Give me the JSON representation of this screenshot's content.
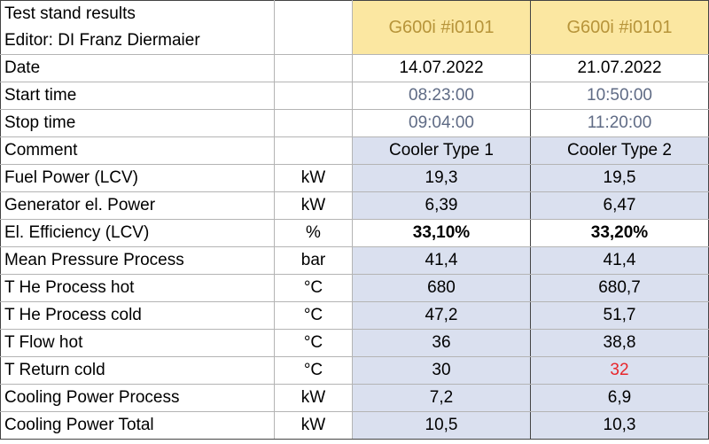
{
  "header": {
    "title_line1": "Test stand results",
    "title_line2": "Editor: DI Franz Diermaier",
    "unit": "",
    "model_a": "G600i #i0101",
    "model_b": "G600i #i0101"
  },
  "rows": [
    {
      "label": "Date",
      "unit": "",
      "a": "14.07.2022",
      "b": "21.07.2022"
    },
    {
      "label": "Start time",
      "unit": "",
      "a": "08:23:00",
      "b": "10:50:00"
    },
    {
      "label": "Stop time",
      "unit": "",
      "a": "09:04:00",
      "b": "11:20:00"
    },
    {
      "label": "Comment",
      "unit": "",
      "a": "Cooler Type 1",
      "b": "Cooler Type  2"
    },
    {
      "label": "Fuel Power (LCV)",
      "unit": "kW",
      "a": "19,3",
      "b": "19,5"
    },
    {
      "label": "Generator el. Power",
      "unit": "kW",
      "a": "6,39",
      "b": "6,47"
    },
    {
      "label": "El. Efficiency (LCV)",
      "unit": "%",
      "a": "33,10%",
      "b": "33,20%"
    },
    {
      "label": "Mean Pressure Process",
      "unit": "bar",
      "a": "41,4",
      "b": "41,4"
    },
    {
      "label": "T He Process hot",
      "unit": "°C",
      "a": "680",
      "b": "680,7"
    },
    {
      "label": "T He Process cold",
      "unit": "°C",
      "a": "47,2",
      "b": "51,7"
    },
    {
      "label": "T Flow hot",
      "unit": "°C",
      "a": "36",
      "b": "38,8"
    },
    {
      "label": "T Return cold",
      "unit": "°C",
      "a": "30",
      "b": "32"
    },
    {
      "label": "Cooling Power Process",
      "unit": "kW",
      "a": "7,2",
      "b": "6,9"
    },
    {
      "label": "Cooling Power Total",
      "unit": "kW",
      "a": "10,5",
      "b": "10,3"
    }
  ],
  "colors": {
    "model_header_bg": "#fbe7a1",
    "model_header_text": "#b7943a",
    "value_bg": "#dae0ef",
    "time_text": "#5f6b85",
    "highlight_red": "#e8262b"
  }
}
